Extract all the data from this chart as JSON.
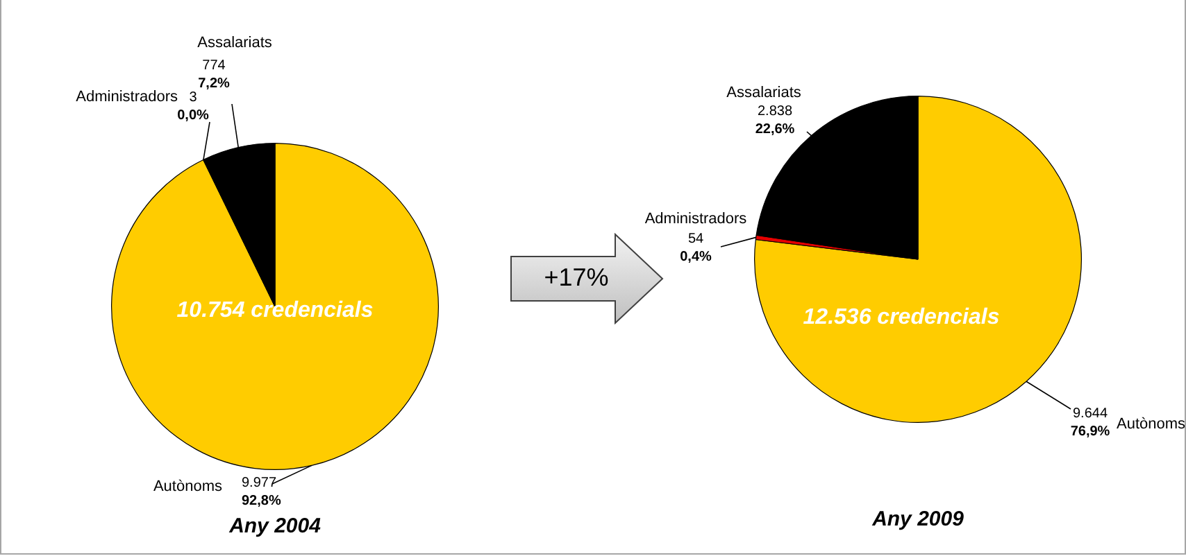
{
  "chart_data": [
    {
      "type": "pie",
      "title": "Any 2004",
      "categories": [
        "Autònoms",
        "Administradors",
        "Assalariats"
      ],
      "values": [
        9977,
        3,
        774
      ],
      "colors": [
        "#ffcc00",
        "#e60000",
        "#000000"
      ],
      "value_labels": [
        "9.977\n92,8%",
        "3\n0,0%",
        "774\n7,2%"
      ],
      "annotations": [
        "10.754 credencials"
      ],
      "legend": false
    },
    {
      "type": "pie",
      "title": "Any 2009",
      "categories": [
        "Autònoms",
        "Administradors",
        "Assalariats"
      ],
      "values": [
        9644,
        54,
        2838
      ],
      "colors": [
        "#ffcc00",
        "#e60000",
        "#000000"
      ],
      "value_labels": [
        "9.644\n76,9%",
        "54\n0,4%",
        "2.838\n22,6%"
      ],
      "annotations": [
        "12.536 credencials",
        "+17%"
      ],
      "legend": false
    }
  ]
}
